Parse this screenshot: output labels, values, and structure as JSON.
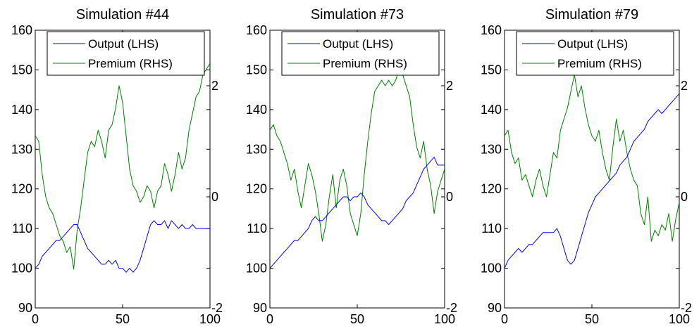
{
  "chart_data": [
    {
      "type": "line",
      "title": "Simulation #44",
      "xlim": [
        0,
        100
      ],
      "ylim_left": [
        90,
        160
      ],
      "ylim_right": [
        -2,
        3
      ],
      "x_ticks": [
        0,
        50,
        100
      ],
      "y_ticks_left": [
        90,
        100,
        110,
        120,
        130,
        140,
        150,
        160
      ],
      "y_ticks_right": [
        -2,
        0,
        2
      ],
      "legend_position": "top-right",
      "series": [
        {
          "name": "Output (LHS)",
          "axis": "left",
          "color": "#0000ff",
          "x": [
            0,
            2,
            4,
            6,
            8,
            10,
            12,
            14,
            16,
            18,
            20,
            22,
            24,
            26,
            28,
            30,
            32,
            34,
            36,
            38,
            40,
            42,
            44,
            46,
            48,
            50,
            52,
            54,
            56,
            58,
            60,
            62,
            64,
            66,
            68,
            70,
            72,
            74,
            76,
            78,
            80,
            82,
            84,
            86,
            88,
            90,
            92,
            94,
            96,
            98,
            100
          ],
          "y": [
            100,
            101,
            103,
            104,
            105,
            106,
            107,
            107,
            108,
            109,
            110,
            111,
            111,
            109,
            107,
            105,
            104,
            103,
            102,
            101,
            101,
            102,
            101,
            102,
            100,
            100,
            99,
            100,
            99,
            100,
            102,
            105,
            108,
            111,
            112,
            111,
            111,
            112,
            110,
            112,
            111,
            110,
            111,
            110,
            110,
            111,
            110,
            110,
            110,
            110,
            110
          ]
        },
        {
          "name": "Premium (RHS)",
          "axis": "right",
          "color": "#008000",
          "x": [
            0,
            2,
            4,
            6,
            8,
            10,
            12,
            14,
            16,
            18,
            20,
            22,
            24,
            26,
            28,
            30,
            32,
            34,
            36,
            38,
            40,
            42,
            44,
            46,
            48,
            50,
            52,
            54,
            56,
            58,
            60,
            62,
            64,
            66,
            68,
            70,
            72,
            74,
            76,
            78,
            80,
            82,
            84,
            86,
            88,
            90,
            92,
            94,
            96,
            98,
            100
          ],
          "y": [
            1.1,
            1.0,
            0.4,
            0.0,
            -0.2,
            -0.3,
            -0.5,
            -0.7,
            -0.8,
            -1.0,
            -0.9,
            -1.3,
            -0.6,
            -0.2,
            0.3,
            0.8,
            1.0,
            0.9,
            1.2,
            1.0,
            0.7,
            1.2,
            1.3,
            1.6,
            2.0,
            1.7,
            1.1,
            0.5,
            0.2,
            0.1,
            -0.1,
            0.0,
            0.2,
            0.1,
            -0.2,
            0.1,
            0.2,
            0.6,
            0.4,
            0.1,
            0.4,
            0.8,
            0.5,
            0.7,
            1.2,
            1.5,
            1.8,
            1.9,
            2.2,
            2.3,
            2.4
          ]
        }
      ]
    },
    {
      "type": "line",
      "title": "Simulation #73",
      "xlim": [
        0,
        100
      ],
      "ylim_left": [
        90,
        160
      ],
      "ylim_right": [
        -2,
        3
      ],
      "x_ticks": [
        0,
        50,
        100
      ],
      "y_ticks_left": [
        90,
        100,
        110,
        120,
        130,
        140,
        150,
        160
      ],
      "y_ticks_right": [
        -2,
        0,
        2
      ],
      "legend_position": "top-right",
      "series": [
        {
          "name": "Output (LHS)",
          "axis": "left",
          "color": "#0000ff",
          "x": [
            0,
            2,
            4,
            6,
            8,
            10,
            12,
            14,
            16,
            18,
            20,
            22,
            24,
            26,
            28,
            30,
            32,
            34,
            36,
            38,
            40,
            42,
            44,
            46,
            48,
            50,
            52,
            54,
            56,
            58,
            60,
            62,
            64,
            66,
            68,
            70,
            72,
            74,
            76,
            78,
            80,
            82,
            84,
            86,
            88,
            90,
            92,
            94,
            96,
            98,
            100
          ],
          "y": [
            100,
            101,
            102,
            103,
            104,
            105,
            106,
            107,
            107,
            108,
            109,
            110,
            112,
            113,
            112,
            112,
            113,
            114,
            115,
            116,
            117,
            118,
            118,
            117,
            118,
            118,
            119,
            118,
            116,
            115,
            114,
            113,
            112,
            112,
            111,
            112,
            113,
            114,
            115,
            117,
            118,
            119,
            121,
            123,
            125,
            126,
            127,
            128,
            126,
            126,
            126
          ]
        },
        {
          "name": "Premium (RHS)",
          "axis": "right",
          "color": "#008000",
          "x": [
            0,
            2,
            4,
            6,
            8,
            10,
            12,
            14,
            16,
            18,
            20,
            22,
            24,
            26,
            28,
            30,
            32,
            34,
            36,
            38,
            40,
            42,
            44,
            46,
            48,
            50,
            52,
            54,
            56,
            58,
            60,
            62,
            64,
            66,
            68,
            70,
            72,
            74,
            76,
            78,
            80,
            82,
            84,
            86,
            88,
            90,
            92,
            94,
            96,
            98,
            100
          ],
          "y": [
            1.2,
            1.3,
            1.1,
            1.0,
            0.8,
            0.6,
            0.3,
            0.5,
            0.1,
            -0.2,
            0.2,
            0.6,
            0.4,
            0.1,
            -0.3,
            -0.8,
            -0.5,
            0.0,
            0.4,
            -0.2,
            0.3,
            0.5,
            0.2,
            -0.3,
            -0.5,
            -0.7,
            -0.3,
            0.4,
            1.0,
            1.5,
            1.9,
            2.0,
            2.1,
            2.0,
            2.1,
            2.0,
            2.1,
            2.3,
            2.2,
            2.0,
            1.8,
            1.3,
            0.9,
            0.7,
            1.0,
            0.5,
            0.2,
            -0.3,
            0.1,
            0.3,
            0.5
          ]
        }
      ]
    },
    {
      "type": "line",
      "title": "Simulation #79",
      "xlim": [
        0,
        100
      ],
      "ylim_left": [
        90,
        160
      ],
      "ylim_right": [
        -2,
        3
      ],
      "x_ticks": [
        0,
        50,
        100
      ],
      "y_ticks_left": [
        90,
        100,
        110,
        120,
        130,
        140,
        150,
        160
      ],
      "y_ticks_right": [
        -2,
        0,
        2
      ],
      "legend_position": "top-right",
      "series": [
        {
          "name": "Output (LHS)",
          "axis": "left",
          "color": "#0000ff",
          "x": [
            0,
            2,
            4,
            6,
            8,
            10,
            12,
            14,
            16,
            18,
            20,
            22,
            24,
            26,
            28,
            30,
            32,
            34,
            36,
            38,
            40,
            42,
            44,
            46,
            48,
            50,
            52,
            54,
            56,
            58,
            60,
            62,
            64,
            66,
            68,
            70,
            72,
            74,
            76,
            78,
            80,
            82,
            84,
            86,
            88,
            90,
            92,
            94,
            96,
            98,
            100
          ],
          "y": [
            100,
            102,
            103,
            104,
            105,
            104,
            105,
            106,
            106,
            107,
            108,
            109,
            109,
            109,
            109,
            110,
            108,
            105,
            102,
            101,
            102,
            105,
            108,
            111,
            114,
            116,
            118,
            119,
            120,
            121,
            122,
            123,
            124,
            126,
            127,
            128,
            130,
            132,
            133,
            134,
            135,
            137,
            138,
            139,
            140,
            139,
            140,
            141,
            142,
            143,
            144
          ]
        },
        {
          "name": "Premium (RHS)",
          "axis": "right",
          "color": "#008000",
          "x": [
            0,
            2,
            4,
            6,
            8,
            10,
            12,
            14,
            16,
            18,
            20,
            22,
            24,
            26,
            28,
            30,
            32,
            34,
            36,
            38,
            40,
            42,
            44,
            46,
            48,
            50,
            52,
            54,
            56,
            58,
            60,
            62,
            64,
            66,
            68,
            70,
            72,
            74,
            76,
            78,
            80,
            82,
            84,
            86,
            88,
            90,
            92,
            94,
            96,
            98,
            100
          ],
          "y": [
            1.1,
            1.2,
            0.8,
            0.6,
            0.7,
            0.3,
            0.4,
            0.2,
            0.0,
            0.3,
            0.5,
            0.2,
            0.0,
            0.4,
            0.8,
            0.7,
            1.2,
            1.4,
            1.6,
            1.9,
            2.2,
            1.8,
            2.0,
            1.6,
            1.3,
            1.1,
            1.0,
            1.2,
            0.8,
            0.5,
            0.3,
            0.9,
            1.4,
            1.0,
            1.2,
            0.8,
            0.5,
            0.3,
            0.2,
            -0.3,
            -0.5,
            0.0,
            -0.8,
            -0.6,
            -0.7,
            -0.5,
            -0.6,
            -0.3,
            -0.8,
            -0.4,
            -0.1
          ]
        }
      ]
    }
  ]
}
